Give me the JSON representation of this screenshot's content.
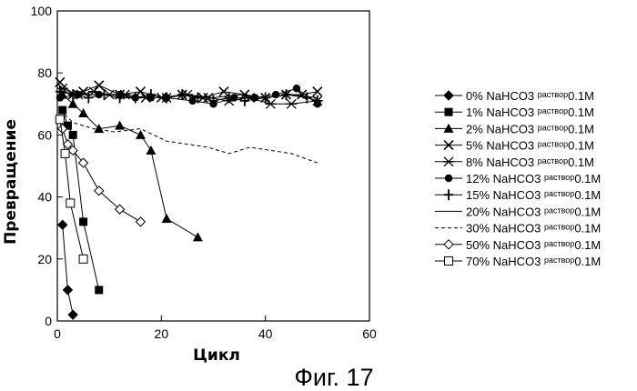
{
  "figure_label": "Фиг. 17",
  "chart_data": {
    "type": "line",
    "xlabel": "Цикл",
    "ylabel": "Превращение",
    "xlim": [
      0,
      60
    ],
    "ylim": [
      0,
      100
    ],
    "xticks": [
      0,
      20,
      40,
      60
    ],
    "yticks": [
      0,
      20,
      40,
      60,
      80,
      100
    ],
    "grid": false,
    "legend_position": "right",
    "series": [
      {
        "name": "0% NaHCO3",
        "sub": "раствор",
        "conc": "0.1M",
        "marker": "diamond-filled",
        "line": "solid",
        "x": [
          1,
          2,
          3
        ],
        "y": [
          31,
          10,
          2
        ]
      },
      {
        "name": "1% NaHCO3",
        "sub": "раствор",
        "conc": "0.1M",
        "marker": "square-filled",
        "line": "solid",
        "x": [
          1,
          2,
          3,
          5,
          8
        ],
        "y": [
          68,
          63,
          60,
          32,
          10
        ]
      },
      {
        "name": "2% NaHCO3",
        "sub": "раствор",
        "conc": "0.1M",
        "marker": "triangle-filled",
        "line": "solid",
        "x": [
          1,
          3,
          5,
          8,
          12,
          16,
          18,
          21,
          27
        ],
        "y": [
          73,
          70,
          67,
          62,
          63,
          60,
          55,
          33,
          27
        ]
      },
      {
        "name": "5% NaHCO3",
        "sub": "раствор",
        "conc": "0.1M",
        "marker": "x",
        "line": "solid",
        "x": [
          0.5,
          3,
          5,
          8,
          12,
          16,
          20,
          24,
          28,
          32,
          36,
          40,
          44,
          47,
          50
        ],
        "y": [
          77,
          73,
          74,
          76,
          73,
          74,
          72,
          73,
          72,
          74,
          73,
          72,
          73,
          73,
          74
        ]
      },
      {
        "name": "8% NaHCO3",
        "sub": "раствор",
        "conc": "0.1M",
        "marker": "asterisk",
        "line": "solid",
        "x": [
          1,
          4,
          7,
          10,
          13,
          17,
          21,
          25,
          29,
          33,
          37,
          41,
          45,
          50
        ],
        "y": [
          75,
          73,
          74,
          73,
          73,
          72,
          72,
          73,
          72,
          71,
          72,
          70,
          70,
          71
        ]
      },
      {
        "name": "12% NaHCO3",
        "sub": "раствор",
        "conc": "0.1M",
        "marker": "circle-filled",
        "line": "solid",
        "x": [
          0.5,
          4,
          8,
          12,
          15,
          18,
          21,
          26,
          30,
          34,
          38,
          42,
          46,
          50
        ],
        "y": [
          72,
          73,
          73,
          73,
          72,
          72,
          72,
          71,
          70,
          72,
          72,
          73,
          75,
          70
        ]
      },
      {
        "name": "15% NaHCO3",
        "sub": "раствор",
        "conc": "0.1M",
        "marker": "plus",
        "line": "solid",
        "x": [
          0.5,
          3,
          6,
          9,
          12,
          15,
          18,
          21,
          24,
          27,
          30,
          33,
          36,
          40,
          44,
          48,
          50
        ],
        "y": [
          74,
          73,
          72,
          73,
          72,
          72,
          73,
          72,
          73,
          72,
          71,
          72,
          71,
          72,
          73,
          72,
          71
        ]
      },
      {
        "name": "20% NaHCO3",
        "sub": "раствор",
        "conc": "0.1M",
        "marker": "none",
        "line": "solid",
        "x": [
          0.5,
          5,
          10,
          15,
          20,
          25,
          30,
          35,
          40,
          45,
          50
        ],
        "y": [
          74,
          73,
          73,
          72,
          72,
          73,
          72,
          73,
          72,
          73,
          72
        ]
      },
      {
        "name": "30% NaHCO3",
        "sub": "раствор",
        "conc": "0.1M",
        "marker": "none",
        "line": "dashed",
        "x": [
          0.5,
          3,
          7,
          11,
          16,
          21,
          25,
          29,
          33,
          37,
          41,
          45,
          50
        ],
        "y": [
          68,
          64,
          62,
          61,
          62,
          58,
          57,
          56,
          54,
          56,
          55,
          54,
          51
        ]
      },
      {
        "name": "50% NaHCO3",
        "sub": "раствор",
        "conc": "0.1M",
        "marker": "diamond-open",
        "line": "solid",
        "x": [
          1,
          2,
          3,
          5,
          8,
          12,
          16
        ],
        "y": [
          62,
          57,
          55,
          51,
          42,
          36,
          32
        ]
      },
      {
        "name": "70% NaHCO3",
        "sub": "раствор",
        "conc": "0.1M",
        "marker": "square-open",
        "line": "solid",
        "x": [
          0.5,
          1.5,
          2.5,
          5
        ],
        "y": [
          65,
          54,
          38,
          20
        ]
      }
    ]
  }
}
